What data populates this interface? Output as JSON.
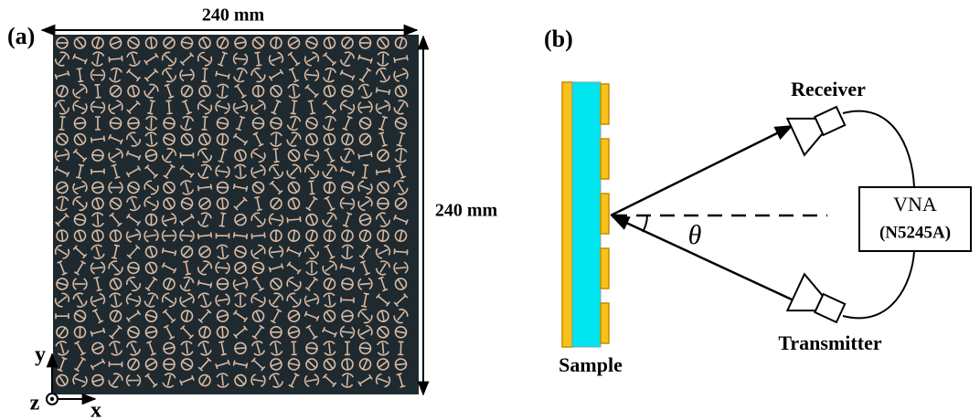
{
  "panel_a": {
    "label": "(a)",
    "width_label": "240 mm",
    "height_label": "240 mm",
    "axis_y": "y",
    "axis_z": "z",
    "axis_x": "x"
  },
  "panel_b": {
    "label": "(b)",
    "receiver": "Receiver",
    "vna": "VNA",
    "vna_model": "(N5245A)",
    "angle": "θ",
    "transmitter": "Transmitter",
    "sample": "Sample"
  }
}
